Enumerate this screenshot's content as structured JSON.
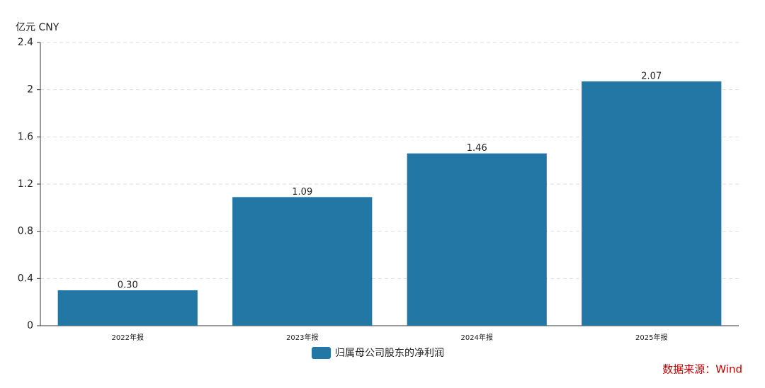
{
  "chart_data": {
    "type": "bar",
    "y_unit": "亿元  CNY",
    "categories": [
      "2022年报",
      "2023年报",
      "2024年报",
      "2025年报"
    ],
    "series": [
      {
        "name": "归属母公司股东的净利润",
        "color": "#2277a5",
        "values": [
          0.3,
          1.09,
          1.46,
          2.07
        ],
        "value_labels": [
          "0.30",
          "1.09",
          "1.46",
          "2.07"
        ]
      }
    ],
    "ylim": [
      0,
      2.4
    ],
    "yticks": [
      0,
      0.4,
      0.8,
      1.2,
      1.6,
      2,
      2.4
    ],
    "grid": true,
    "legend": "bottom",
    "source": "数据来源：Wind"
  }
}
